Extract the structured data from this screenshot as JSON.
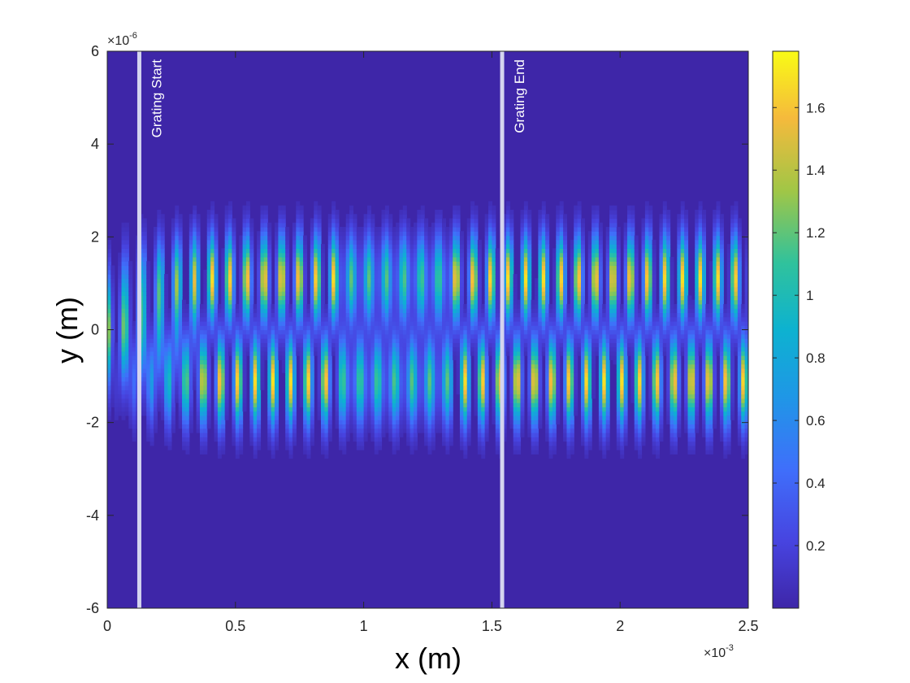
{
  "chart_data": {
    "type": "heatmap",
    "title": "",
    "xlabel": "x (m)",
    "ylabel": "y (m)",
    "xlim": [
      0,
      0.0025
    ],
    "ylim": [
      -6e-06,
      6e-06
    ],
    "x_ticks": [
      "0",
      "0.5",
      "1",
      "1.5",
      "2",
      "2.5"
    ],
    "x_tick_values": [
      0,
      0.0005,
      0.001,
      0.0015,
      0.002,
      0.0025
    ],
    "x_exponent_base": "×10",
    "x_exponent_power": "-3",
    "y_ticks": [
      "-6",
      "-4",
      "-2",
      "0",
      "2",
      "4",
      "6"
    ],
    "y_tick_values": [
      -6e-06,
      -4e-06,
      -2e-06,
      0,
      2e-06,
      4e-06,
      6e-06
    ],
    "y_exponent_base": "×10",
    "y_exponent_power": "-6",
    "colormap": "parula",
    "color_range": [
      0,
      1.78
    ],
    "colorbar_ticks": [
      "0.2",
      "0.4",
      "0.6",
      "0.8",
      "1",
      "1.2",
      "1.4",
      "1.6"
    ],
    "colorbar_tick_values": [
      0.2,
      0.4,
      0.6,
      0.8,
      1.0,
      1.2,
      1.4,
      1.6
    ],
    "colorbar_placement": "right",
    "grid": false,
    "markers": [
      {
        "label": "Grating Start",
        "x": 0.000125,
        "color": "#d4d4ef"
      },
      {
        "label": "Grating End",
        "x": 0.00154,
        "color": "#d4d4ef"
      }
    ],
    "field_structure": {
      "upper_lobe_center_y": 1.1e-06,
      "lower_lobe_center_y": -1.1e-06,
      "lobe_half_width_y": 9e-07,
      "peak_intensity": 1.7,
      "fringe_period_x": 6.8e-05
    }
  }
}
